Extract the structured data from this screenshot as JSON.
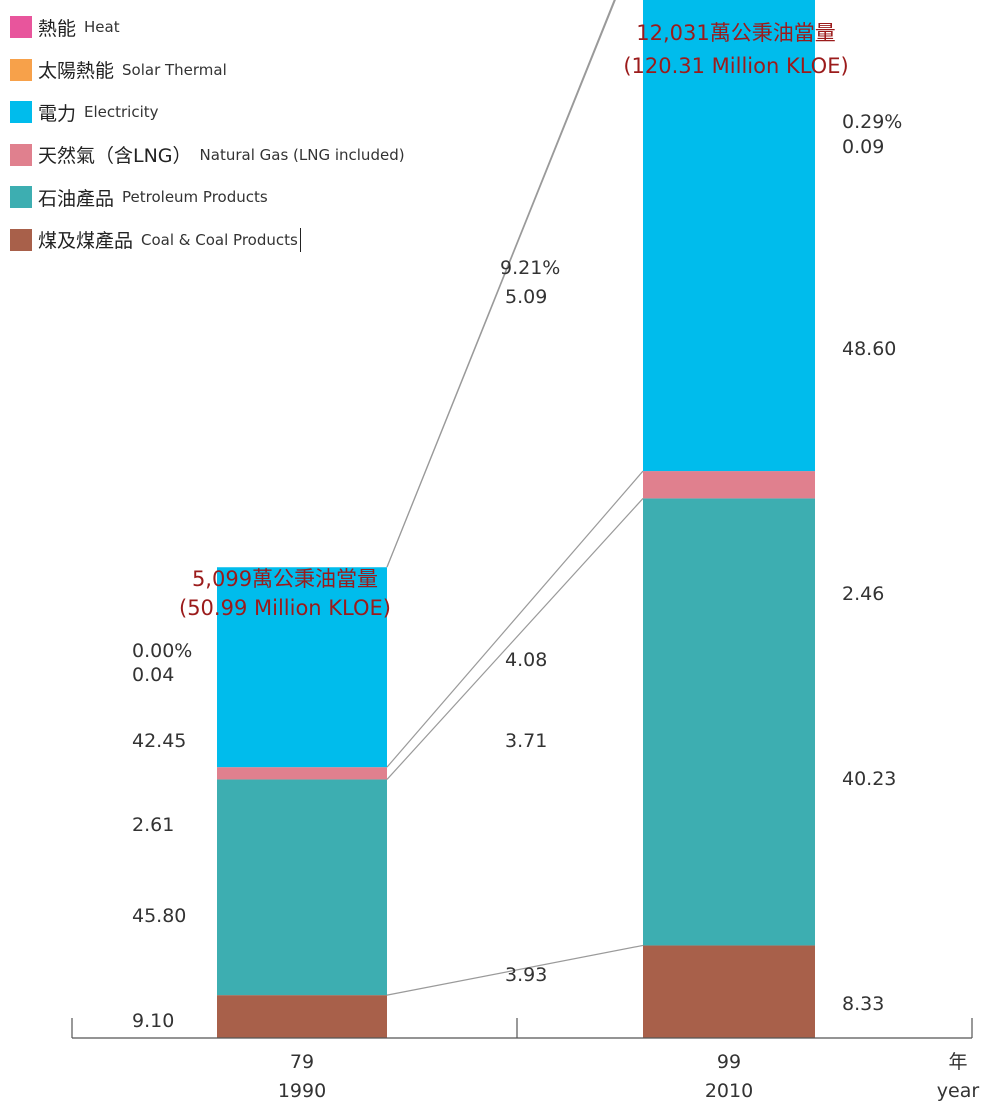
{
  "colors": {
    "heat": "#e8559c",
    "solar_thermal": "#f7a14a",
    "electricity": "#00bcec",
    "natural_gas": "#e0808e",
    "petroleum": "#3daeb1",
    "coal": "#a8604a",
    "total_label": "#9b1b1b",
    "connector": "#9a9a9a"
  },
  "legend": [
    {
      "key": "heat",
      "zh": "熱能",
      "en": "Heat",
      "icon": "square-swatch"
    },
    {
      "key": "solar_thermal",
      "zh": "太陽熱能",
      "en": "Solar Thermal",
      "icon": "square-swatch"
    },
    {
      "key": "electricity",
      "zh": "電力",
      "en": "Electricity",
      "icon": "square-swatch"
    },
    {
      "key": "natural_gas",
      "zh": "天然氣（含LNG）",
      "en": "Natural Gas (LNG included)",
      "icon": "square-swatch"
    },
    {
      "key": "petroleum",
      "zh": "石油產品",
      "en": "Petroleum Products",
      "icon": "square-swatch"
    },
    {
      "key": "coal",
      "zh": "煤及煤產品",
      "en": "Coal & Coal Products",
      "icon": "square-swatch"
    }
  ],
  "chart_data": {
    "type": "bar",
    "stacked": true,
    "unit": "%",
    "categories": [
      "79\n1990",
      "99\n2010"
    ],
    "category_lines": [
      [
        "79",
        "1990"
      ],
      [
        "99",
        "2010"
      ]
    ],
    "axis_unit_label": {
      "zh": "年",
      "en": "year"
    },
    "totals": [
      {
        "line1": "5,099萬公秉油當量",
        "line2": "(50.99 Million KLOE)",
        "value": 50.99
      },
      {
        "line1": "12,031萬公秉油當量",
        "line2": "(120.31 Million KLOE)",
        "value": 120.31
      }
    ],
    "series": [
      {
        "key": "coal",
        "name": "煤及煤產品 Coal & Coal Products",
        "values": [
          9.1,
          8.33
        ],
        "labels": [
          "9.10",
          "8.33"
        ]
      },
      {
        "key": "petroleum",
        "name": "石油產品 Petroleum Products",
        "values": [
          45.8,
          40.23
        ],
        "labels": [
          "45.80",
          "40.23"
        ]
      },
      {
        "key": "natural_gas",
        "name": "天然氣（含LNG）Natural Gas (LNG included)",
        "values": [
          2.61,
          2.46
        ],
        "labels": [
          "2.61",
          "2.46"
        ]
      },
      {
        "key": "electricity",
        "name": "電力 Electricity",
        "values": [
          42.45,
          48.6
        ],
        "labels": [
          "42.45",
          "48.60"
        ]
      },
      {
        "key": "solar_thermal",
        "name": "太陽熱能 Solar Thermal",
        "values": [
          0.04,
          0.09
        ],
        "labels": [
          "0.04",
          "0.09"
        ]
      },
      {
        "key": "heat",
        "name": "熱能 Heat",
        "values": [
          0.0,
          0.29
        ],
        "labels": [
          "0.00%",
          "0.29%"
        ]
      }
    ],
    "growth_rates": [
      {
        "series": "heat",
        "label": "9.21%"
      },
      {
        "series": "solar_thermal",
        "label": "5.09"
      },
      {
        "series": "natural_gas",
        "label": "4.08"
      },
      {
        "series": "petroleum",
        "label": "3.71"
      },
      {
        "series": "coal",
        "label": "3.93"
      }
    ]
  }
}
